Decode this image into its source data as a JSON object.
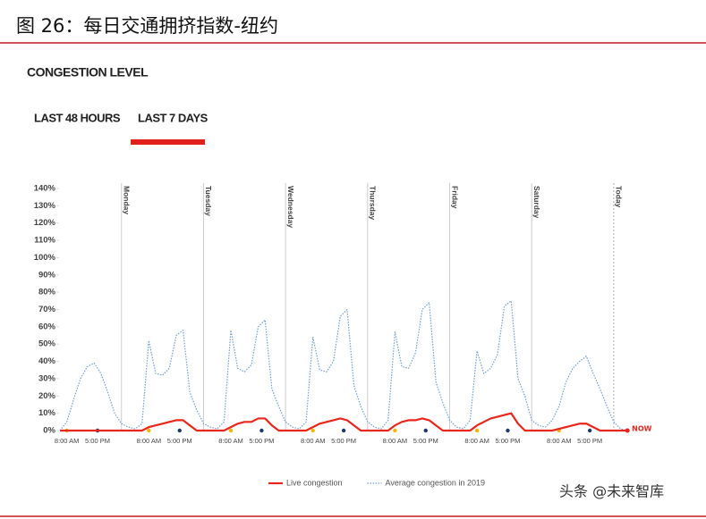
{
  "header": {
    "title": "图 26：每日交通拥挤指数-纽约"
  },
  "panel_title": "CONGESTION LEVEL",
  "tabs": [
    "LAST 48 HOURS",
    "LAST 7 DAYS"
  ],
  "watermark": "头条 @未来智库",
  "chart_data": {
    "type": "line",
    "x": [
      6,
      8,
      10,
      12,
      14,
      16,
      18,
      20,
      22,
      24,
      26,
      28,
      30,
      32,
      34,
      36,
      38,
      40,
      42,
      44,
      46,
      48,
      50,
      52,
      54,
      56,
      58,
      60,
      62,
      64,
      66,
      68,
      70,
      72,
      74,
      76,
      78,
      80,
      82,
      84,
      86,
      88,
      90,
      92,
      94,
      96,
      98,
      100,
      102,
      104,
      106,
      108,
      110,
      112,
      114,
      116,
      118,
      120,
      122,
      124,
      126,
      128,
      130,
      132,
      134,
      136,
      138,
      140,
      142,
      144,
      146,
      148,
      150,
      152,
      154,
      156,
      158,
      160,
      162,
      164,
      166,
      168,
      170,
      172
    ],
    "series": [
      {
        "name": "Live congestion",
        "color": "#e8261c",
        "style": "solid",
        "values": [
          0,
          0,
          0,
          0,
          0,
          0,
          0,
          0,
          0,
          0,
          0,
          0,
          0,
          2,
          3,
          4,
          5,
          6,
          6,
          3,
          0,
          0,
          0,
          0,
          0,
          2,
          4,
          5,
          5,
          7,
          7,
          3,
          0,
          0,
          0,
          0,
          0,
          2,
          4,
          5,
          6,
          7,
          6,
          3,
          0,
          0,
          0,
          0,
          0,
          3,
          5,
          6,
          6,
          7,
          6,
          3,
          0,
          0,
          0,
          0,
          0,
          3,
          5,
          7,
          8,
          9,
          10,
          4,
          0,
          0,
          0,
          0,
          0,
          1,
          2,
          3,
          4,
          4,
          2,
          0,
          0,
          0,
          0,
          0
        ]
      },
      {
        "name": "Average congestion in 2019",
        "color": "#6f9fd8",
        "style": "dotted",
        "values": [
          0,
          5,
          18,
          30,
          37,
          39,
          33,
          22,
          10,
          4,
          2,
          1,
          4,
          52,
          33,
          32,
          36,
          55,
          58,
          22,
          12,
          4,
          2,
          1,
          5,
          58,
          36,
          34,
          38,
          60,
          64,
          24,
          14,
          5,
          2,
          1,
          5,
          54,
          35,
          34,
          40,
          66,
          70,
          26,
          14,
          5,
          2,
          1,
          6,
          57,
          37,
          36,
          45,
          70,
          74,
          28,
          16,
          6,
          2,
          1,
          6,
          46,
          33,
          36,
          44,
          72,
          75,
          30,
          20,
          6,
          3,
          2,
          6,
          14,
          28,
          36,
          40,
          43,
          33,
          24,
          14,
          5,
          1,
          0
        ]
      }
    ],
    "xlim": [
      6,
      173
    ],
    "xticks": [
      {
        "value": 8,
        "label": "8:00 AM"
      },
      {
        "value": 17,
        "label": "5:00 PM"
      },
      {
        "value": 32,
        "label": "8:00 AM"
      },
      {
        "value": 41,
        "label": "5:00 PM"
      },
      {
        "value": 56,
        "label": "8:00 AM"
      },
      {
        "value": 65,
        "label": "5:00 PM"
      },
      {
        "value": 80,
        "label": "8:00 AM"
      },
      {
        "value": 89,
        "label": "5:00 PM"
      },
      {
        "value": 104,
        "label": "8:00 AM"
      },
      {
        "value": 113,
        "label": "5:00 PM"
      },
      {
        "value": 128,
        "label": "8:00 AM"
      },
      {
        "value": 137,
        "label": "5:00 PM"
      },
      {
        "value": 152,
        "label": "8:00 AM"
      },
      {
        "value": 161,
        "label": "5:00 PM"
      }
    ],
    "xtick_marker_colors": [
      "#f2b705",
      "#1b3a6b"
    ],
    "ylim": [
      0,
      140
    ],
    "yticks": [
      {
        "value": 0,
        "label": "0%"
      },
      {
        "value": 10,
        "label": "10%"
      },
      {
        "value": 20,
        "label": "20%"
      },
      {
        "value": 30,
        "label": "30%"
      },
      {
        "value": 40,
        "label": "40%"
      },
      {
        "value": 50,
        "label": "50%"
      },
      {
        "value": 60,
        "label": "60%"
      },
      {
        "value": 70,
        "label": "70%"
      },
      {
        "value": 80,
        "label": "80%"
      },
      {
        "value": 90,
        "label": "90%"
      },
      {
        "value": 100,
        "label": "100%"
      },
      {
        "value": 110,
        "label": "110%"
      },
      {
        "value": 120,
        "label": "120%"
      },
      {
        "value": 130,
        "label": "130%"
      },
      {
        "value": 140,
        "label": "140%"
      }
    ],
    "day_markers": [
      {
        "x": 24,
        "label": "Monday"
      },
      {
        "x": 48,
        "label": "Tuesday"
      },
      {
        "x": 72,
        "label": "Wednesday"
      },
      {
        "x": 96,
        "label": "Thursday"
      },
      {
        "x": 120,
        "label": "Friday"
      },
      {
        "x": 144,
        "label": "Saturday"
      },
      {
        "x": 168,
        "label": "Today"
      }
    ],
    "annotation": "NOW",
    "legend": "bottom"
  }
}
